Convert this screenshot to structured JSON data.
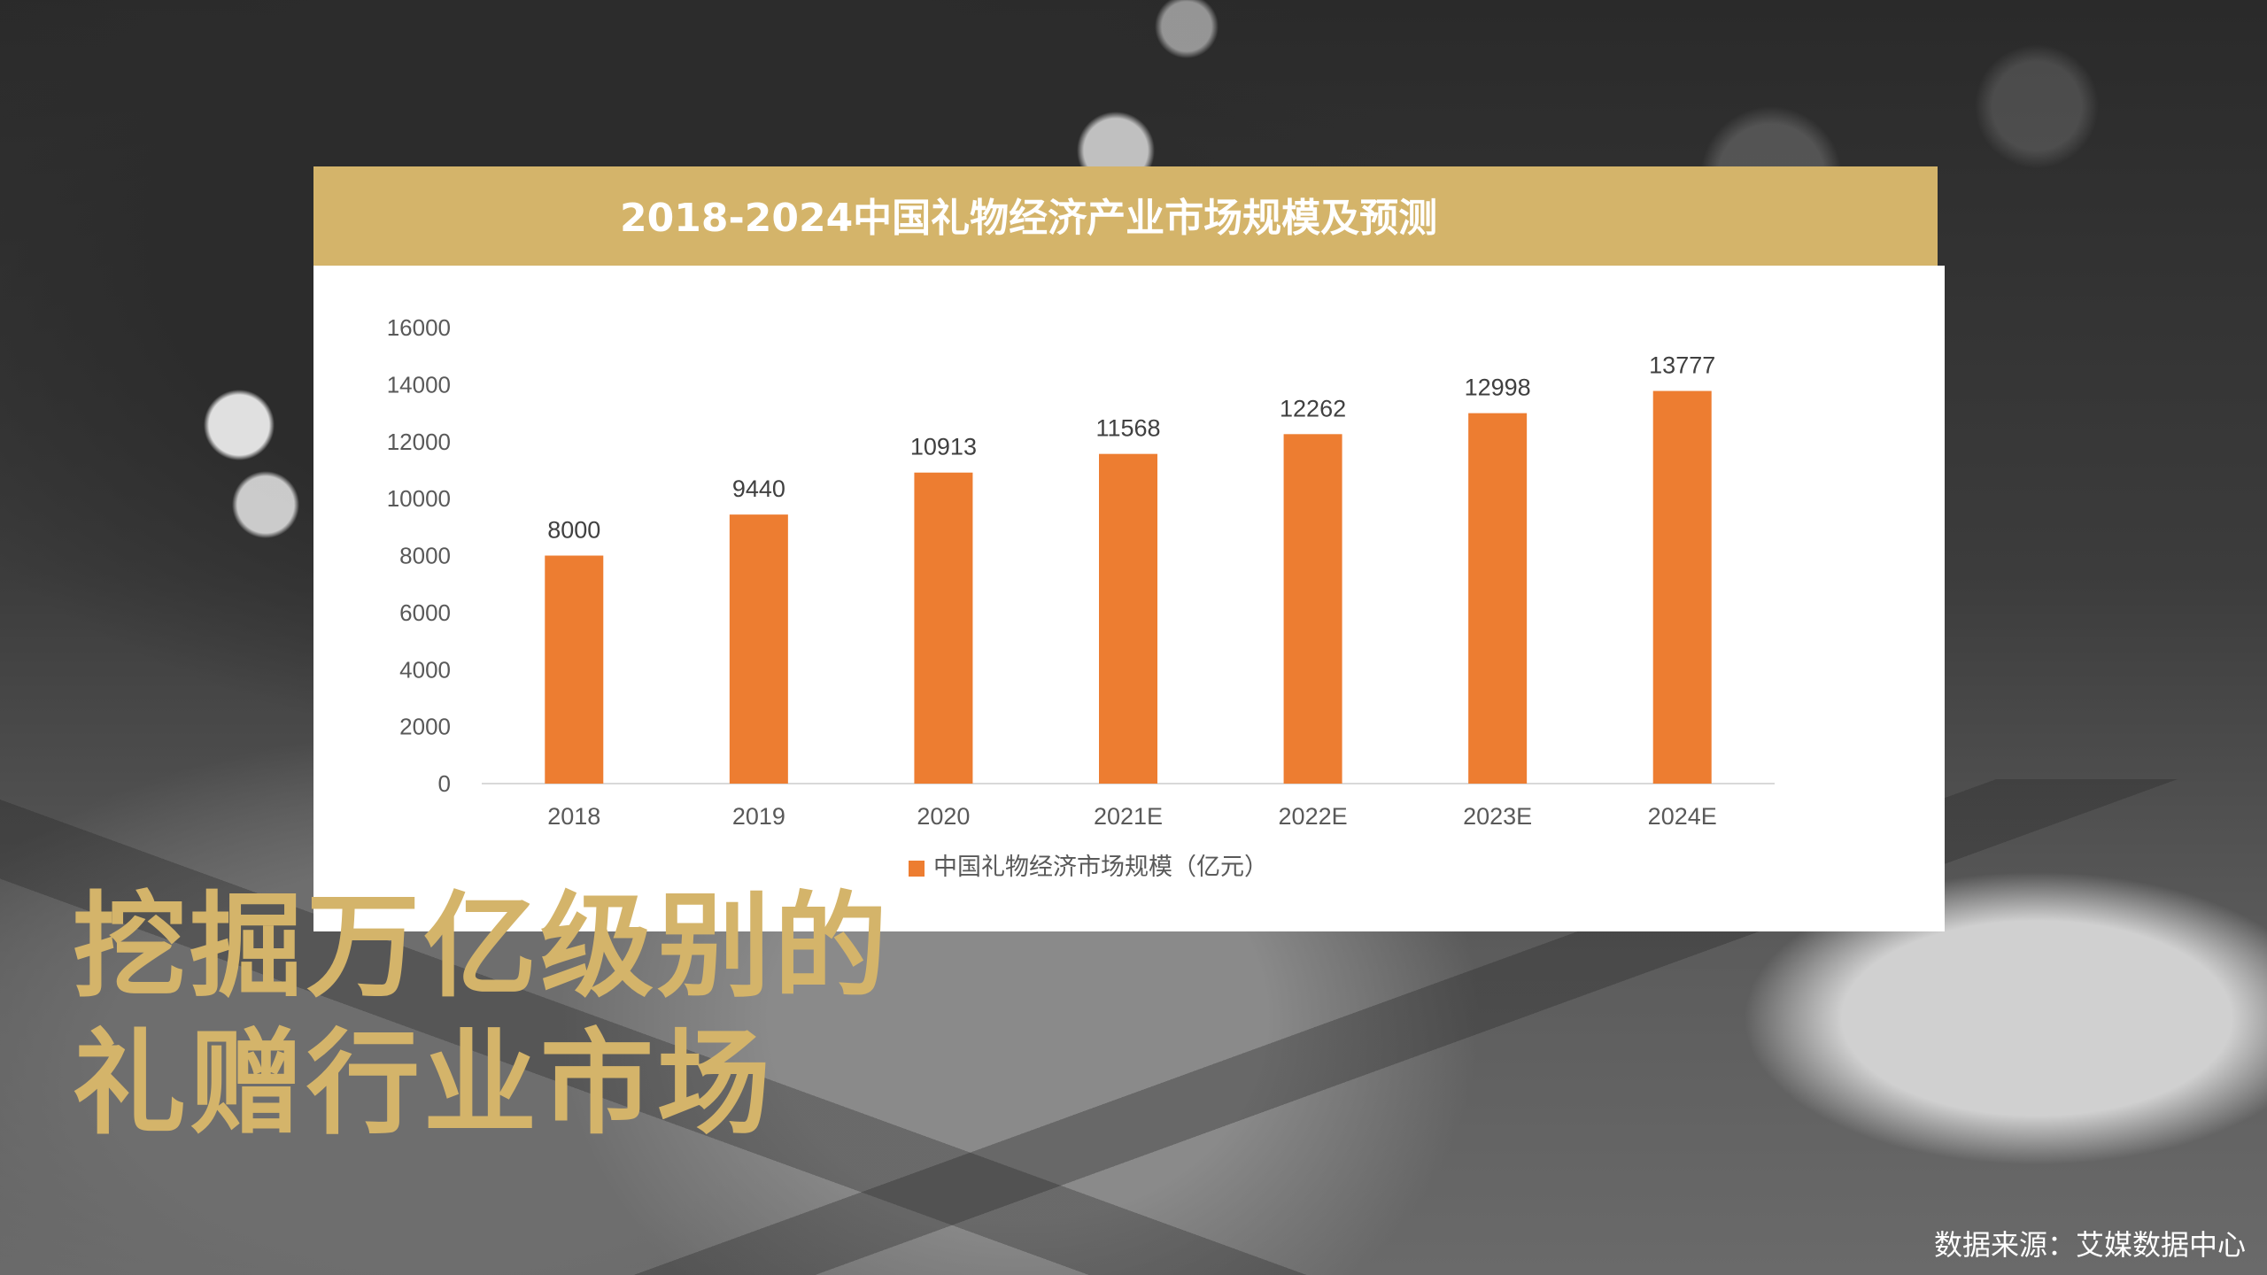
{
  "slide": {
    "headline_line1": "挖掘万亿级别的",
    "headline_line2": "礼赠行业市场",
    "source": "数据来源：艾媒数据中心"
  },
  "colors": {
    "title_bar": "#d4b46a",
    "bar": "#ed7d31",
    "headline": "#d4b46a",
    "axis_text": "#595959"
  },
  "chart_data": {
    "type": "bar",
    "title": "2018-2024中国礼物经济产业市场规模及预测",
    "categories": [
      "2018",
      "2019",
      "2020",
      "2021E",
      "2022E",
      "2023E",
      "2024E"
    ],
    "series": [
      {
        "name": "中国礼物经济市场规模（亿元）",
        "values": [
          8000,
          9440,
          10913,
          11568,
          12262,
          12998,
          13777
        ]
      }
    ],
    "yticks": [
      "0",
      "2000",
      "4000",
      "6000",
      "8000",
      "10000",
      "12000",
      "14000",
      "16000"
    ],
    "ylim": [
      0,
      16000
    ],
    "grid": false,
    "legend": "bottom-center"
  }
}
